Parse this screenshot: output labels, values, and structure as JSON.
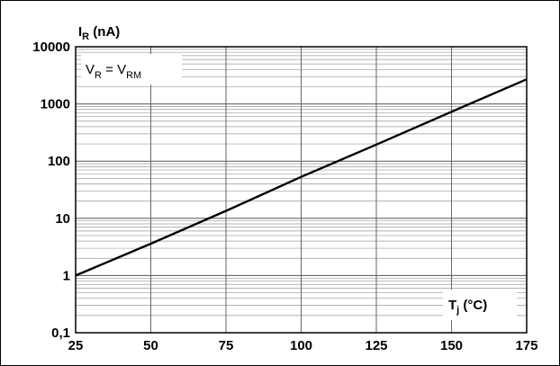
{
  "chart_data": {
    "type": "line",
    "title": "",
    "y_axis": {
      "label_main": "I",
      "label_sub": "R",
      "label_unit": " (nA)",
      "scale": "log",
      "ylim": [
        0.1,
        10000
      ],
      "ticks": [
        0.1,
        1,
        10,
        100,
        1000,
        10000
      ],
      "tick_labels": [
        "0,1",
        "1",
        "10",
        "100",
        "1000",
        "10000"
      ]
    },
    "x_axis": {
      "label_main": "T",
      "label_sub": "j",
      "label_unit": " (°C)",
      "scale": "linear",
      "xlim": [
        25,
        175
      ],
      "ticks": [
        25,
        50,
        75,
        100,
        125,
        150,
        175
      ],
      "tick_labels": [
        "25",
        "50",
        "75",
        "100",
        "125",
        "150",
        "175"
      ]
    },
    "annotation": {
      "v": "V",
      "v_sub": "R",
      "eq": " = V",
      "rm_sub": "RM"
    },
    "grid": true,
    "series": [
      {
        "x": [
          25,
          50,
          75,
          100,
          125,
          150,
          175
        ],
        "y": [
          1.0,
          3.6,
          13.5,
          53,
          195,
          730,
          2700
        ]
      }
    ]
  }
}
